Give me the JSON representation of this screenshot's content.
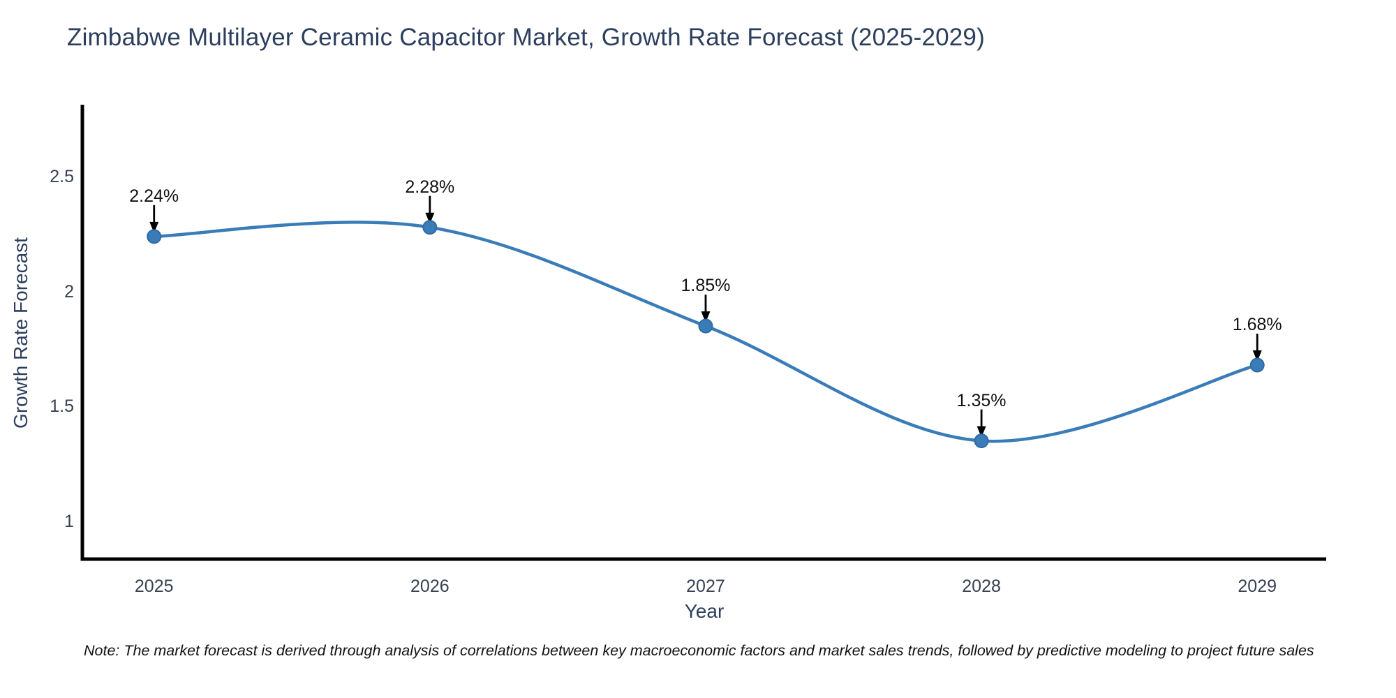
{
  "page": {
    "title": "Zimbabwe Multilayer Ceramic Capacitor Market, Growth Rate Forecast (2025-2029)",
    "note": "Note: The market forecast is derived through analysis of correlations between key macroeconomic factors and market sales trends, followed by predictive modeling to project future sales"
  },
  "chart_data": {
    "type": "line",
    "title": "Zimbabwe Multilayer Ceramic Capacitor Market, Growth Rate Forecast (2025-2029)",
    "xlabel": "Year",
    "ylabel": "Growth Rate Forecast",
    "x": [
      2025,
      2026,
      2027,
      2028,
      2029
    ],
    "values": [
      2.24,
      2.28,
      1.85,
      1.35,
      1.68
    ],
    "point_labels": [
      "2.24%",
      "2.28%",
      "1.85%",
      "1.35%",
      "1.68%"
    ],
    "xtick_labels": [
      "2025",
      "2026",
      "2027",
      "2028",
      "2029"
    ],
    "yticks": [
      1,
      1.5,
      2,
      2.5
    ],
    "ytick_labels": [
      "1",
      "1.5",
      "2",
      "2.5"
    ],
    "xlim": [
      2024.74,
      2029.25
    ],
    "ylim": [
      0.835,
      2.805
    ],
    "grid": false,
    "legend": "none",
    "smooth_spline": true,
    "line_color": "#3a7cb8",
    "marker_color": "#3a7cb8",
    "marker_edge_color": "#2f6ba3",
    "axis_spine_color": "#000000",
    "annotation_arrow_color": "#000000",
    "text_color": "#2c3e5d",
    "note": "Note: The market forecast is derived through analysis of correlations between key macroeconomic factors and market sales trends, followed by predictive modeling to project future sales"
  }
}
